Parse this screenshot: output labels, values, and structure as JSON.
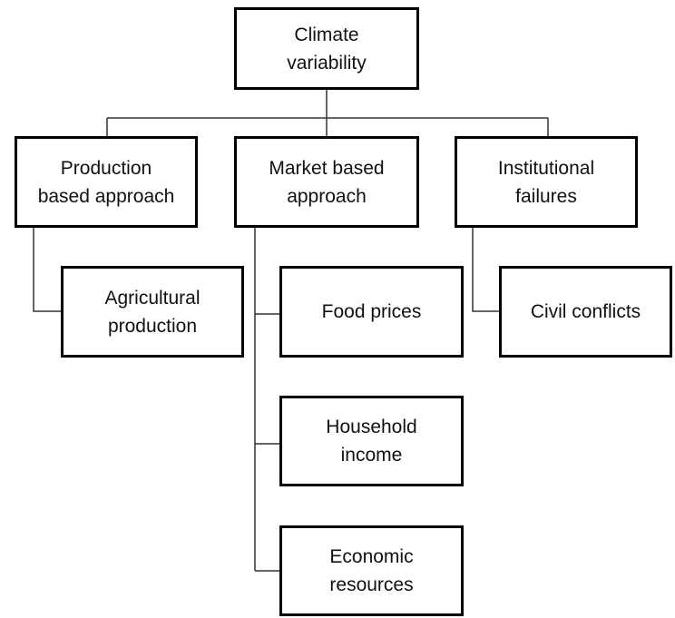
{
  "nodes": [
    {
      "lines": [
        "Climate",
        "variability"
      ]
    },
    {
      "lines": [
        "Production",
        "based approach"
      ]
    },
    {
      "lines": [
        "Market based",
        "approach"
      ]
    },
    {
      "lines": [
        "Institutional",
        "failures"
      ]
    },
    {
      "lines": [
        "Agricultural",
        "production"
      ]
    },
    {
      "lines": [
        "Food prices"
      ]
    },
    {
      "lines": [
        "Civil conflicts"
      ]
    },
    {
      "lines": [
        "Household",
        "income"
      ]
    },
    {
      "lines": [
        "Economic",
        "resources"
      ]
    }
  ]
}
